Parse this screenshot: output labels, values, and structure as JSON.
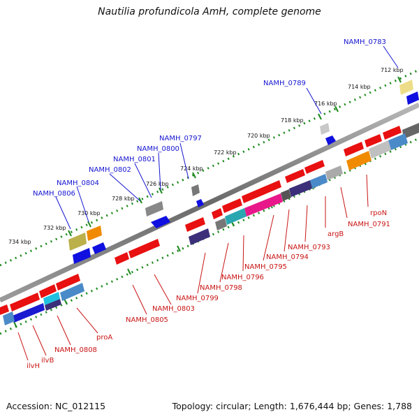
{
  "title": "Nautilia profundicola AmH, complete genome",
  "footer": {
    "accession": "Accession: NC_012115",
    "summary": "Topology: circular; Length: 1,676,444 bp; Genes: 1,788"
  },
  "ticks": [
    "712 kbp",
    "714 kbp",
    "716 kbp",
    "718 kbp",
    "720 kbp",
    "722 kbp",
    "724 kbp",
    "726 kbp",
    "728 kbp",
    "730 kbp",
    "732 kbp",
    "734 kbp"
  ],
  "labels_top": [
    "NAMH_0783",
    "NAMH_0789",
    "NAMH_0797",
    "NAMH_0800",
    "NAMH_0801",
    "NAMH_0802",
    "NAMH_0804",
    "NAMH_0806"
  ],
  "labels_bottom": [
    "rpoN",
    "NAMH_0791",
    "argB",
    "NAMH_0793",
    "NAMH_0794",
    "NAMH_0795",
    "NAMH_0796",
    "NAMH_0798",
    "NAMH_0799",
    "NAMH_0803",
    "NAMH_0805",
    "proA",
    "NAMH_0808",
    "ilvB",
    "ilvH"
  ],
  "colors": {
    "forward_gene": "#e81010",
    "reverse_gene": "#2020e0",
    "backbone": "#7a7a7a",
    "ruler": "#1e8a1e",
    "label_top": "#1515d0",
    "label_bottom": "#c81414"
  }
}
